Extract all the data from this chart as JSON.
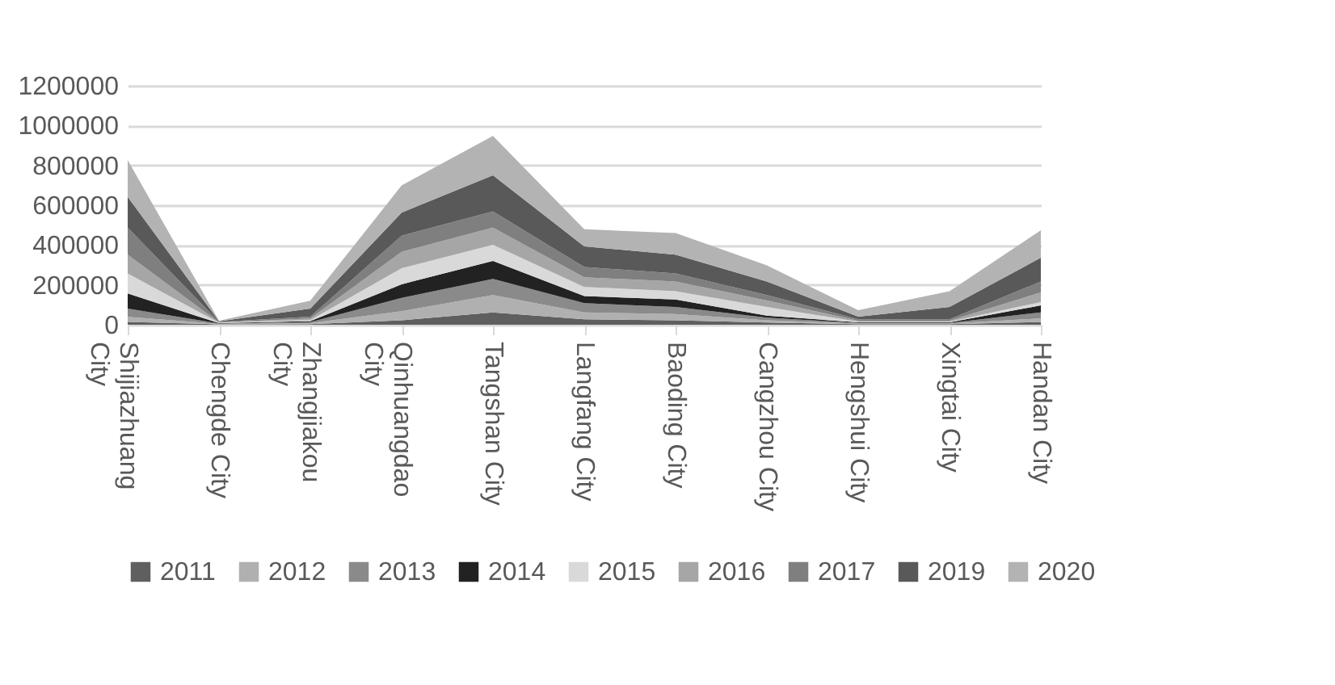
{
  "chart_data": {
    "type": "area",
    "stacked": true,
    "grid": "y",
    "legend": "bottom",
    "categories": [
      "Shijiazhuang City",
      "Chengde City",
      "Zhangjiakou City",
      "Qinhuangdao City",
      "Tangshan City",
      "Langfang City",
      "Baoding City",
      "Cangzhou City",
      "Hengshui City",
      "Xingtai City",
      "Handan City"
    ],
    "ylim": [
      0,
      1200000
    ],
    "yticks": [
      0,
      200000,
      400000,
      600000,
      800000,
      1000000,
      1200000
    ],
    "series": [
      {
        "name": "2011",
        "color": "#5f5f5f",
        "values": [
          14000,
          2000,
          3000,
          22000,
          62000,
          27000,
          22000,
          11000,
          3000,
          3000,
          14000
        ]
      },
      {
        "name": "2012",
        "color": "#b0b0b0",
        "values": [
          26000,
          2000,
          5000,
          46000,
          87000,
          35000,
          32000,
          11000,
          3000,
          3000,
          18000
        ]
      },
      {
        "name": "2013",
        "color": "#8a8a8a",
        "values": [
          41000,
          2000,
          5000,
          67000,
          81000,
          46000,
          35000,
          13000,
          3000,
          3000,
          30000
        ]
      },
      {
        "name": "2014",
        "color": "#222222",
        "values": [
          76000,
          2000,
          5000,
          68000,
          90000,
          36000,
          38000,
          11000,
          3000,
          3000,
          35000
        ]
      },
      {
        "name": "2015",
        "color": "#d9d9d9",
        "values": [
          100000,
          2000,
          5000,
          81000,
          81000,
          46000,
          41000,
          43000,
          3000,
          3000,
          17000
        ]
      },
      {
        "name": "2016",
        "color": "#a6a6a6",
        "values": [
          95000,
          2000,
          8000,
          82000,
          86000,
          48000,
          49000,
          33000,
          5000,
          5000,
          48000
        ]
      },
      {
        "name": "2017",
        "color": "#7f7f7f",
        "values": [
          135000,
          2000,
          10000,
          81000,
          82000,
          52000,
          40000,
          27000,
          7000,
          7000,
          55000
        ]
      },
      {
        "name": "2019",
        "color": "#595959",
        "values": [
          155000,
          3000,
          40000,
          116000,
          181000,
          103000,
          95000,
          68000,
          14000,
          62000,
          119000
        ]
      },
      {
        "name": "2020",
        "color": "#b3b3b3",
        "values": [
          184000,
          3000,
          40000,
          136000,
          198000,
          86000,
          108000,
          81000,
          32000,
          79000,
          138000
        ]
      }
    ]
  }
}
